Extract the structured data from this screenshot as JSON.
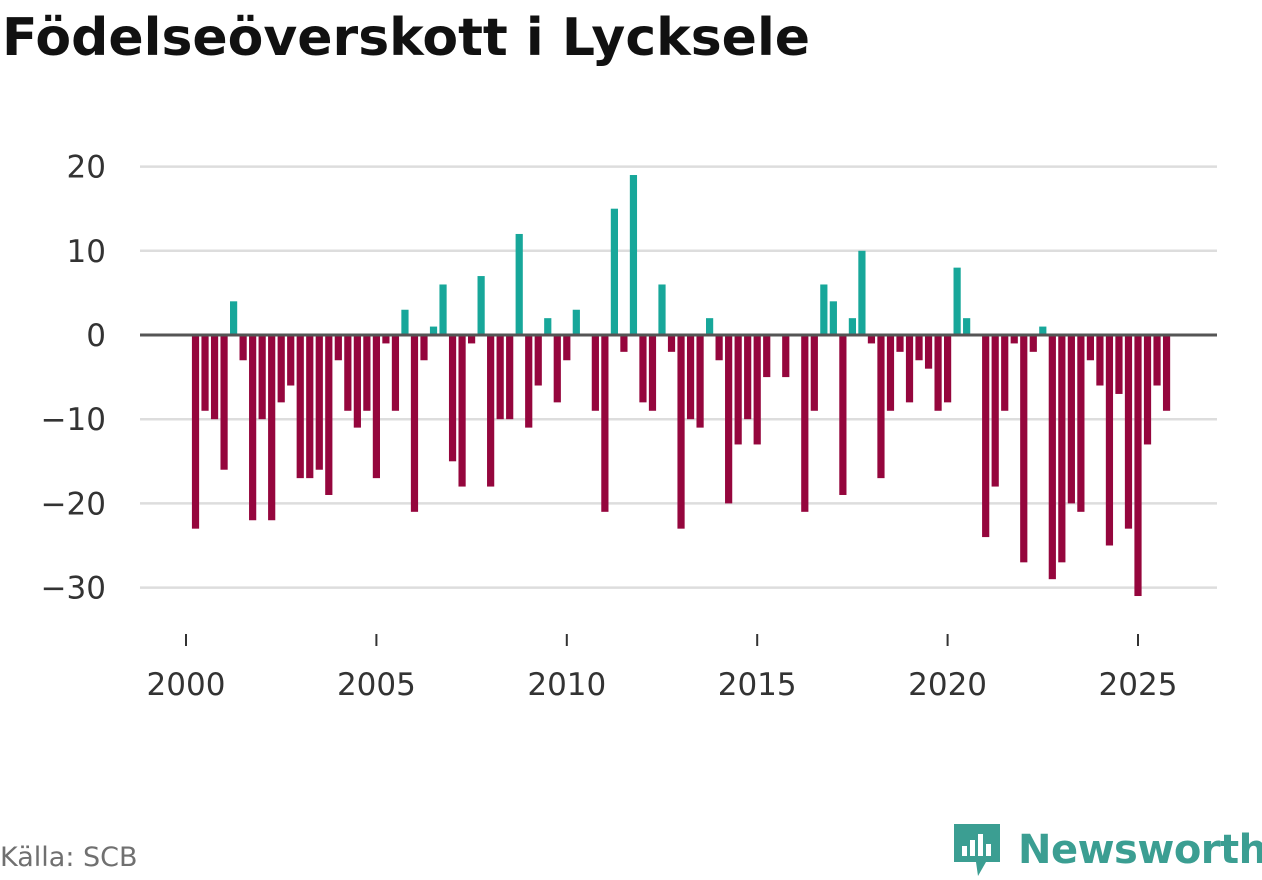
{
  "title": "Födelseöverskott i Lycksele",
  "source": "Källa: SCB",
  "brand": {
    "name": "Newsworthy",
    "icon": "newsworthy-logo-icon"
  },
  "colors": {
    "positive": "#17a79a",
    "negative": "#95063d",
    "grid": "#dddddd",
    "zero_line": "#555555",
    "brand": "#3b9e92"
  },
  "chart_data": {
    "type": "bar",
    "title": "Födelseöverskott i Lycksele",
    "xlabel": "",
    "ylabel": "",
    "frequency": "quarterly",
    "start": 2000.25,
    "step": 0.25,
    "x_ticks": [
      2000,
      2005,
      2010,
      2015,
      2020,
      2025
    ],
    "x_tick_labels": [
      "2000",
      "2005",
      "2010",
      "2015",
      "2020",
      "2025"
    ],
    "y_ticks": [
      20,
      10,
      0,
      -10,
      -20,
      -30
    ],
    "y_tick_labels": [
      "20",
      "10",
      "0",
      "−10",
      "−20",
      "−30"
    ],
    "xlim": [
      1999.5,
      2028.0
    ],
    "ylim": [
      -34,
      23
    ],
    "values": [
      -23,
      -9,
      -10,
      -16,
      4,
      -3,
      -22,
      -10,
      -22,
      -8,
      -6,
      -17,
      -17,
      -16,
      -19,
      -3,
      -9,
      -11,
      -9,
      -17,
      -1,
      -9,
      3,
      -21,
      -3,
      1,
      6,
      -15,
      -18,
      -1,
      7,
      -18,
      -10,
      -10,
      12,
      -11,
      -6,
      2,
      -8,
      -3,
      3,
      0,
      -9,
      -21,
      15,
      -2,
      19,
      -8,
      -9,
      6,
      -2,
      -23,
      -10,
      -11,
      2,
      -3,
      -20,
      -13,
      -10,
      -13,
      -5,
      0,
      -5,
      0,
      -21,
      -9,
      6,
      4,
      -19,
      2,
      10,
      -1,
      -17,
      -9,
      -2,
      -8,
      -3,
      -4,
      -9,
      -8,
      8,
      2,
      0,
      -24,
      -18,
      -9,
      -1,
      -27,
      -2,
      1,
      -29,
      -27,
      -20,
      -21,
      -3,
      -6,
      -25,
      -7,
      -23,
      -31,
      -13,
      -6,
      -9
    ]
  }
}
